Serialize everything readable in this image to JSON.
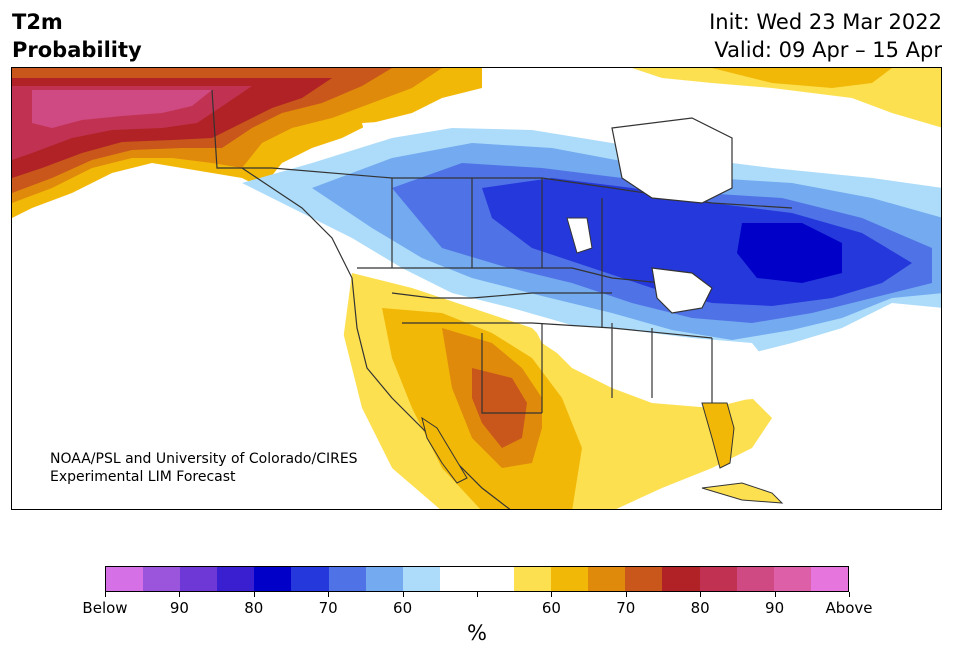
{
  "title": {
    "line1": "T2m",
    "line2": "Probability"
  },
  "info": {
    "init": "Init: Wed 23 Mar 2022",
    "valid": "Valid: 09 Apr – 15 Apr"
  },
  "credit": {
    "line1": "NOAA/PSL and University of Colorado/CIRES",
    "line2": "Experimental LIM Forecast"
  },
  "colorbar": {
    "colors": [
      "#d670e6",
      "#9b55dc",
      "#6e38d6",
      "#3a1fd0",
      "#0000c8",
      "#2538dc",
      "#4f72e6",
      "#73aaf0",
      "#acdcfa",
      "#ffffff",
      "#ffffff",
      "#fde050",
      "#f2b807",
      "#e08a0c",
      "#c9561a",
      "#b02226",
      "#c13252",
      "#cf4a82",
      "#dd5fa8",
      "#e675de"
    ],
    "labels": [
      "Below",
      "90",
      "80",
      "70",
      "60",
      "",
      "60",
      "70",
      "80",
      "90",
      "Above"
    ],
    "unit": "%"
  }
}
